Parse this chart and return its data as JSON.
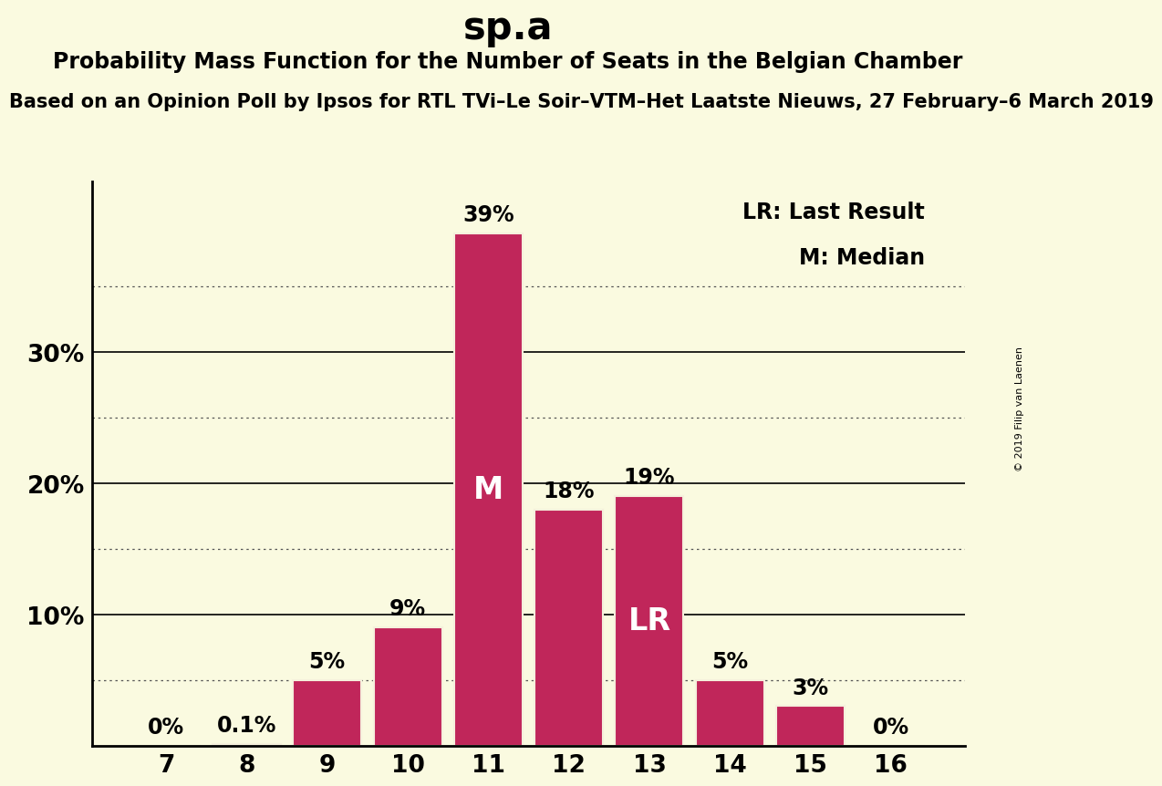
{
  "title": "sp.a",
  "subtitle1": "Probability Mass Function for the Number of Seats in the Belgian Chamber",
  "subtitle2": "Based on an Opinion Poll by Ipsos for RTL TVi–Le Soir–VTM–Het Laatste Nieuws, 27 February–6 March 2019",
  "watermark": "© 2019 Filip van Laenen",
  "categories": [
    7,
    8,
    9,
    10,
    11,
    12,
    13,
    14,
    15,
    16
  ],
  "values": [
    0.0,
    0.1,
    5.0,
    9.0,
    39.0,
    18.0,
    19.0,
    5.0,
    3.0,
    0.0
  ],
  "bar_color": "#C0265A",
  "bar_edgecolor": "#F5F0DC",
  "background_color": "#FAFAE0",
  "ytick_positions": [
    10,
    20,
    30
  ],
  "ytick_labels": [
    "10%",
    "20%",
    "30%"
  ],
  "grid_solid": [
    10,
    20,
    30
  ],
  "grid_dotted": [
    5,
    15,
    25,
    35
  ],
  "ylim_max": 43,
  "median_seat": 11,
  "lr_seat": 13,
  "median_label": "M",
  "lr_label": "LR",
  "legend_lr": "LR: Last Result",
  "legend_m": "M: Median",
  "title_fontsize": 30,
  "subtitle1_fontsize": 17,
  "subtitle2_fontsize": 15,
  "bar_label_fontsize": 17,
  "axis_tick_fontsize": 19,
  "ylabel_fontsize": 19,
  "legend_fontsize": 17,
  "inside_label_fontsize": 24
}
